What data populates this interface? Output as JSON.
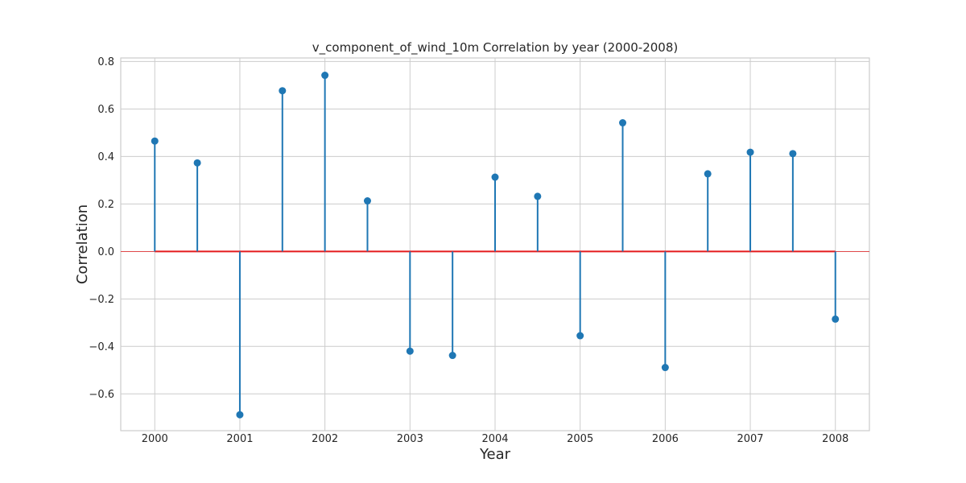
{
  "chart_data": {
    "type": "stem",
    "title": "v_component_of_wind_10m Correlation by year (2000-2008)",
    "xlabel": "Year",
    "ylabel": "Correlation",
    "x": [
      2000,
      2000.5,
      2001,
      2001.5,
      2002,
      2002.5,
      2003,
      2003.5,
      2004,
      2004.5,
      2005,
      2005.5,
      2006,
      2006.5,
      2007,
      2007.5,
      2008
    ],
    "values": [
      0.465,
      0.373,
      -0.688,
      0.677,
      0.742,
      0.213,
      -0.42,
      -0.438,
      0.313,
      0.232,
      -0.355,
      0.542,
      -0.489,
      0.327,
      0.418,
      0.412,
      -0.285
    ],
    "xticks": [
      2000,
      2001,
      2002,
      2003,
      2004,
      2005,
      2006,
      2007,
      2008
    ],
    "xtick_labels": [
      "2000",
      "2001",
      "2002",
      "2003",
      "2004",
      "2005",
      "2006",
      "2007",
      "2008"
    ],
    "yticks": [
      -0.6,
      -0.4,
      -0.2,
      0.0,
      0.2,
      0.4,
      0.6,
      0.8
    ],
    "ytick_labels": [
      "−0.6",
      "−0.4",
      "−0.2",
      "0.0",
      "0.2",
      "0.4",
      "0.6",
      "0.8"
    ],
    "xlim": [
      1999.6,
      2008.4
    ],
    "ylim": [
      -0.755,
      0.815
    ],
    "grid": true,
    "baseline": 0,
    "colors": {
      "stem": "#1f77b4",
      "marker": "#1f77b4",
      "baseline": "#e41a1c",
      "grid": "#cccccc",
      "spine": "#cccccc"
    }
  }
}
